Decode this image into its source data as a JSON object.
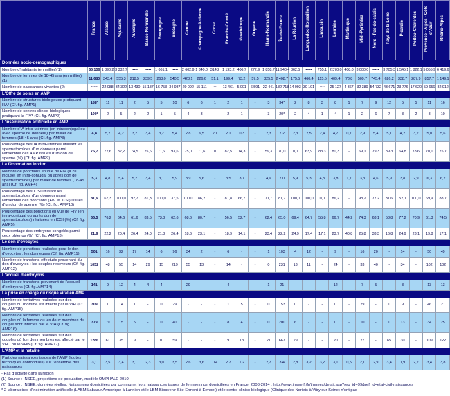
{
  "colors": {
    "header_navy": "#0a0a84",
    "row_shade_blue": "#a7d6f4",
    "grid_line": "#94a2b6",
    "text_dark_blue": "#0e0e52",
    "header_text": "#ffffff"
  },
  "table": {
    "columns": [
      "France",
      "Alsace",
      "Aquitaine",
      "Auvergne",
      "Basse-Normandie",
      "Bourgogne",
      "Bretagne",
      "Centre",
      "Champagne-Ardenne",
      "Corse",
      "Franche-Comté",
      "Guadeloupe",
      "Guyane",
      "Haute-Normandie",
      "Île-de-France",
      "La Réunion",
      "Languedoc-Roussillon",
      "Limousin",
      "Lorraine",
      "Martinique",
      "Midi-Pyrénées",
      "Nord - Pas-de-calais",
      "Pays de la Loire",
      "Picardie",
      "Poitou-Charentes",
      "Provence - Alpes - Côte d'Azur",
      "Rhône-Alpes"
    ],
    "sections": [
      {
        "title": "Données socio-démographiques",
        "rows": [
          {
            "label": "Nombre d'habitants (en millier)(1)",
            "shaded": false,
            "values": [
              "66 156",
              "1 890,2",
              "3 332,7",
              "•••••",
              "•••••",
              "1 661,1",
              "•••••",
              "2 602,9",
              "1 340,0",
              "314,2",
              "1 193,2",
              "406,7",
              "272,9",
              "1 858,7",
              "11 940,4",
              "862,5",
              "•••••",
              "755,1",
              "2 370,0",
              "408,0",
              "3 000,0",
              "•••••",
              "3 705,3",
              "1 545,1",
              "1 822,1",
              "5 055,9",
              "6 419,6"
            ]
          },
          {
            "label": "Nombre de femmes de 18-45 ans (en millier)(1)",
            "shaded": true,
            "values": [
              "11 680",
              "343,4",
              "555,3",
              "218,5",
              "239,5",
              "263,0",
              "540,5",
              "428,1",
              "226,6",
              "51,1",
              "199,4",
              "73,2",
              "57,5",
              "325,5",
              "2 408,7",
              "175,5",
              "460,4",
              "115,5",
              "409,4",
              "73,8",
              "509,7",
              "745,4",
              "626,2",
              "338,7",
              "287,9",
              "857,7",
              "1 149,1"
            ]
          },
          {
            "label": "Nombre de naissances vivantes (2)",
            "shaded": false,
            "values": [
              "•••••",
              "22 088",
              "34 322",
              "13 430",
              "15 187",
              "16 753",
              "34 987",
              "29 092",
              "15 111",
              "••••",
              "13 461",
              "5 001",
              "6 591",
              "22 441",
              "182 718",
              "14 093",
              "30 191",
              "••••",
              "25 127",
              "4 367",
              "32 389",
              "54 732",
              "43 671",
              "23 776",
              "17 620",
              "59 656",
              "82 912"
            ]
          }
        ]
      },
      {
        "title": "L'Offre de soins en AMP",
        "rows": [
          {
            "label": "Nombre de structures biologiques pratiquant l'IA* (Cf. fig. AMP1)",
            "shaded": true,
            "values": [
              "188*",
              "11",
              "11",
              "2",
              "5",
              "5",
              "10",
              "6",
              "6",
              "1",
              "2",
              "1",
              "-",
              "3",
              "34*",
              "2",
              "8",
              "3",
              "8",
              "1",
              "7",
              "9",
              "12",
              "5",
              "5",
              "11",
              "16"
            ]
          },
          {
            "label": "Nombre de centres clinico-biologiques pratiquant la FIV* (Cf. fig. AMP2)",
            "shaded": false,
            "values": [
              "100*",
              "2",
              "5",
              "2",
              "2",
              "1",
              "5",
              "4",
              "3",
              "-",
              "2",
              "1",
              "-",
              "3",
              "20*",
              "2",
              "4",
              "1",
              "4",
              "1",
              "2",
              "6",
              "7",
              "3",
              "2",
              "8",
              "10"
            ]
          }
        ]
      },
      {
        "title": "L'insémination artificielle en AMP",
        "rows": [
          {
            "label": "Nombre d'IA intra-utérines (en intraconjugal ou avec sperme de donneur) par millier de femmes (18-45 ans) (Cf. fig. AMP3)",
            "shaded": true,
            "values": [
              "4,8",
              "5,2",
              "4,2",
              "3,2",
              "3,4",
              "3,2",
              "5,4",
              "2,8",
              "6,5",
              "2,1",
              "2,1",
              "0,3",
              "-",
              "2,3",
              "7,2",
              "2,3",
              "2,5",
              "2,4",
              "4,7",
              "0,7",
              "2,9",
              "5,4",
              "5,1",
              "4,2",
              "3,2",
              "5,0",
              "5,6"
            ]
          },
          {
            "label": "Pourcentage des IA intra-utérines utilisant les spermatozoïdes d'un donneur parmi l'ensemble des AMP issues d'un don de sperme (%) (Cf. fig. AMP9)",
            "shaded": false,
            "values": [
              "75,7",
              "72,6",
              "82,2",
              "74,5",
              "75,6",
              "71,6",
              "93,6",
              "75,0",
              "71,6",
              "0,0",
              "82,5",
              "14,3",
              "-",
              "59,3",
              "70,0",
              "0,0",
              "63,9",
              "83,3",
              "80,3",
              "-",
              "69,1",
              "79,3",
              "89,3",
              "64,8",
              "78,6",
              "70,1",
              "75,7"
            ]
          }
        ]
      },
      {
        "title": "La fécondation in vitro",
        "rows": [
          {
            "label": "Nombre de ponctions en vue de FIV (ICSI incluse, en intra-conjugal ou après don de spermatozoïdes) par millier de femmes (18-45 ans) (Cf. fig. AMP4)",
            "shaded": true,
            "values": [
              "5,3",
              "4,8",
              "5,4",
              "5,2",
              "3,4",
              "3,1",
              "5,9",
              "3,9",
              "5,6",
              "-",
              "3,5",
              "3,7",
              "-",
              "4,9",
              "7,0",
              "5,9",
              "5,3",
              "4,3",
              "3,8",
              "1,7",
              "3,3",
              "4,6",
              "5,9",
              "3,8",
              "2,9",
              "6,3",
              "6,2"
            ]
          },
          {
            "label": "Pourcentage des ICSI utilisant les spermatozoïdes d'un donneur parmi l'ensemble des ponctions (FIV et ICSI) issues d'un don de sperme (%) (Cf. fig. AMP10)",
            "shaded": false,
            "values": [
              "81,6",
              "67,3",
              "100,0",
              "92,7",
              "81,3",
              "100,0",
              "37,5",
              "100,0",
              "86,2",
              "-",
              "81,8",
              "66,7",
              "-",
              "71,7",
              "81,7",
              "100,0",
              "100,0",
              "0,0",
              "86,2",
              "-",
              "98,2",
              "77,2",
              "31,6",
              "52,1",
              "100,0",
              "69,9",
              "88,7"
            ]
          },
          {
            "label": "Pourcentage des ponctions en vue de FIV (en intra-conjugal ou après don de spermatozoïdes) réalisées en ICSI (%) (Cf. fig. AMP5)",
            "shaded": true,
            "values": [
              "66,5",
              "76,2",
              "64,6",
              "61,6",
              "83,5",
              "73,8",
              "62,6",
              "68,6",
              "80,7",
              "-",
              "56,5",
              "52,7",
              "-",
              "62,4",
              "65,0",
              "69,4",
              "64,7",
              "55,8",
              "66,7",
              "44,2",
              "74,3",
              "63,1",
              "58,8",
              "77,2",
              "70,9",
              "61,3",
              "74,5"
            ]
          },
          {
            "label": "Pourcentage des embryons congelés parmi ceux obtenus (%) (Cf. fig. AMP13)",
            "shaded": false,
            "values": [
              "21,9",
              "22,2",
              "20,4",
              "26,4",
              "24,0",
              "21,3",
              "26,4",
              "18,6",
              "23,1",
              "-",
              "18,9",
              "14,1",
              "-",
              "23,4",
              "22,2",
              "24,9",
              "17,4",
              "17,1",
              "23,7",
              "40,8",
              "25,8",
              "33,3",
              "16,8",
              "24,9",
              "23,1",
              "19,8",
              "17,1"
            ]
          }
        ]
      },
      {
        "title": "Le don d'ovocytes",
        "rows": [
          {
            "label": "Nombre de ponctions réalisées pour le don d'ovocytes : les donneuses (Cf. fig. AMP11)",
            "shaded": true,
            "values": [
              "501",
              "16",
              "32",
              "17",
              "14",
              "6",
              "96",
              "34",
              "2",
              "-",
              "6",
              "-",
              "-",
              "1",
              "103",
              "4",
              "12",
              "-",
              "9",
              "-",
              "16",
              "20",
              "-",
              "14",
              "-",
              "50",
              "49"
            ]
          },
          {
            "label": "Nombre de transferts effectués provenant du don d'ovocytes : les couples receveurs (Cf. fig. AMP12)",
            "shaded": false,
            "values": [
              "1052",
              "48",
              "55",
              "14",
              "29",
              "15",
              "219",
              "55",
              "13",
              "-",
              "14",
              "-",
              "-",
              "0",
              "231",
              "13",
              "11",
              "-",
              "24",
              "-",
              "33",
              "40",
              "-",
              "34",
              "-",
              "102",
              "102"
            ]
          }
        ]
      },
      {
        "title": "L'accueil d'embryons",
        "rows": [
          {
            "label": "Nombre de transferts provenant de l'accueil d'embryons (Cf. fig. AMP14)",
            "shaded": true,
            "values": [
              "141",
              "9",
              "12",
              "4",
              "4",
              "4",
              "-",
              "29",
              "-",
              "-",
              "4",
              "-",
              "-",
              "1",
              "21",
              "-",
              "-",
              "-",
              "12",
              "-",
              "7",
              "5",
              "-",
              "3",
              "-",
              "13",
              "13"
            ]
          }
        ]
      },
      {
        "title": "La prise en charge du risque viral en AMP",
        "rows": [
          {
            "label": "Nombre de tentatives réalisées sur des couples où l'homme est infecté par le VIH (Cf. fig. AMP15)",
            "shaded": false,
            "values": [
              "309",
              "1",
              "14",
              "1",
              "-",
              "0",
              "29",
              "-",
              "-",
              "-",
              "1",
              "5",
              "-",
              "0",
              "153",
              "0",
              "-",
              "-",
              "0",
              "-",
              "29",
              "-",
              "0",
              "9",
              "-",
              "46",
              "21"
            ]
          },
          {
            "label": "Nombre de tentatives réalisées sur des couples où la femme ou les deux membres du couple sont infectés par le VIH (Cf. fig. AMP16)",
            "shaded": true,
            "values": [
              "379",
              "19",
              "15",
              "5",
              "-",
              "0",
              "40",
              "-",
              "-",
              "-",
              "8",
              "4",
              "-",
              "0",
              "200",
              "6",
              "-",
              "-",
              "0",
              "-",
              "10",
              "-",
              "0",
              "13",
              "-",
              "34",
              "25"
            ]
          },
          {
            "label": "Nombre de tentatives réalisées sur des couples où l'un des membres est affecté par le VHC ou le VHB (Cf. fig. AMP17)",
            "shaded": false,
            "values": [
              "1286",
              "61",
              "35",
              "9",
              "-",
              "10",
              "59",
              "-",
              "-",
              "-",
              "9",
              "13",
              "-",
              "21",
              "667",
              "29",
              "-",
              "-",
              "20",
              "-",
              "27",
              "-",
              "65",
              "30",
              "-",
              "109",
              "122"
            ]
          }
        ]
      },
      {
        "title": "L'AMP et la natalité",
        "rows": [
          {
            "label": "Part des naissances issues de l'AMP (toutes techniques confondues) sur l'ensemble des naissances",
            "shaded": true,
            "values": [
              "3,1",
              "3,5",
              "3,4",
              "3,1",
              "2,3",
              "3,0",
              "3,5",
              "2,6",
              "3,6",
              "0,4",
              "2,7",
              "1,2",
              "-",
              "2,7",
              "3,4",
              "2,8",
              "3,2",
              "3,2",
              "3,1",
              "0,5",
              "2,1",
              "2,9",
              "3,4",
              "1,9",
              "2,2",
              "3,4",
              "3,8"
            ]
          }
        ]
      }
    ],
    "footnotes": [
      "- Pas d'activité dans la région",
      "(1) Source : INSEE, projections de population, modèle OMPHALE 2010",
      "(2) Source : INSEE, données réelles, Naissances domiciliées par commune, hors naissances issues de femmes non domiciliées en France, 2008-2014 : http://www.insee.fr/fr/themes/detail.asp?reg_id=99&ref_id=etat-civil-naissances",
      "* 2 laboratoires d'insémination artificielle (LABM Labazur Armorique à Lannion et le LBM Bioavenir Site Ermont à Ermont) et le centre clinico-biologique (Clinique des Noriets à Vitry sur Seine) n'ont pas"
    ]
  }
}
